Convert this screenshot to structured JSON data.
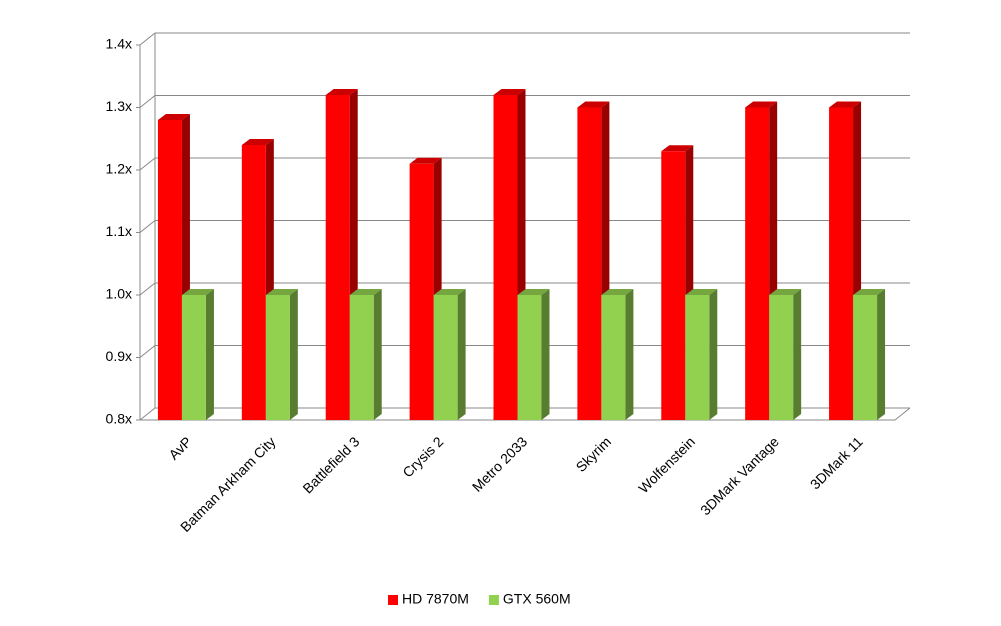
{
  "chart_data": {
    "type": "bar3d",
    "categories": [
      "AvP",
      "Batman Arkham City",
      "Battlefield 3",
      "Crysis 2",
      "Metro 2033",
      "Skyrim",
      "Wolfenstein",
      "3DMark Vantage",
      "3DMark 11"
    ],
    "series": [
      {
        "name": "HD 7870M",
        "color": "#ff0000",
        "values": [
          1.28,
          1.24,
          1.32,
          1.21,
          1.32,
          1.3,
          1.23,
          1.3,
          1.3
        ]
      },
      {
        "name": "GTX 560M",
        "color": "#92d050",
        "values": [
          1.0,
          1.0,
          1.0,
          1.0,
          1.0,
          1.0,
          1.0,
          1.0,
          1.0
        ]
      }
    ],
    "ylim": [
      0.8,
      1.4
    ],
    "yticks": [
      {
        "value": 0.8,
        "label": "0.8x"
      },
      {
        "value": 0.9,
        "label": "0.9x"
      },
      {
        "value": 1.0,
        "label": "1.0x"
      },
      {
        "value": 1.1,
        "label": "1.1x"
      },
      {
        "value": 1.2,
        "label": "1.2x"
      },
      {
        "value": 1.3,
        "label": "1.3x"
      },
      {
        "value": 1.4,
        "label": "1.4x"
      }
    ],
    "grid": true,
    "legend": "bottom"
  }
}
